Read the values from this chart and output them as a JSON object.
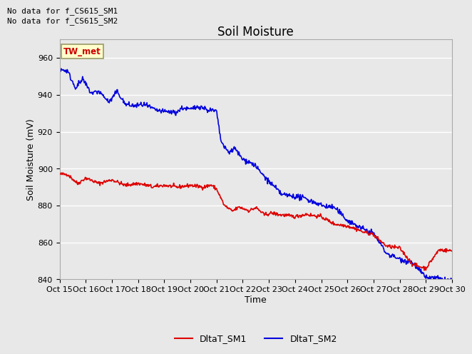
{
  "title": "Soil Moisture",
  "xlabel": "Time",
  "ylabel": "Soil Moisture (mV)",
  "ylim": [
    840,
    970
  ],
  "yticks": [
    840,
    860,
    880,
    900,
    920,
    940,
    960
  ],
  "text_no_data": [
    "No data for f_CS615_SM1",
    "No data for f_CS615_SM2"
  ],
  "annotation_box": "TW_met",
  "annotation_box_color": "#ffffcc",
  "annotation_box_text_color": "#cc0000",
  "annotation_box_edge_color": "#999966",
  "legend_labels": [
    "DltaT_SM1",
    "DltaT_SM2"
  ],
  "line_color_sm1": "#dd0000",
  "line_color_sm2": "#0000dd",
  "background_color": "#e8e8e8",
  "axes_bg_color": "#e8e8e8",
  "grid_color": "#ffffff",
  "title_fontsize": 12,
  "axis_label_fontsize": 9,
  "tick_label_fontsize": 8,
  "x_tick_labels": [
    "Oct 15",
    "Oct 16",
    "Oct 17",
    "Oct 18",
    "Oct 19",
    "Oct 20",
    "Oct 21",
    "Oct 22",
    "Oct 23",
    "Oct 24",
    "Oct 25",
    "Oct 26",
    "Oct 27",
    "Oct 28",
    "Oct 29",
    "Oct 30"
  ],
  "x_tick_positions": [
    0,
    1,
    2,
    3,
    4,
    5,
    6,
    7,
    8,
    9,
    10,
    11,
    12,
    13,
    14,
    15
  ]
}
